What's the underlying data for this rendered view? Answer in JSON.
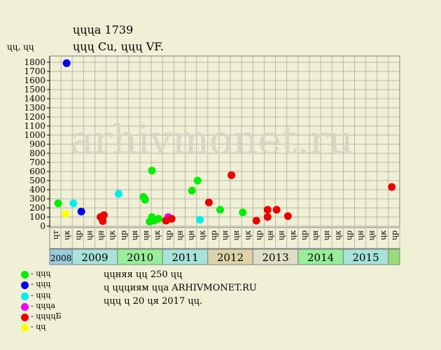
{
  "header": {
    "title": "ųųųа 1739",
    "subtitle": "ųųų Cu, ųųų VF.",
    "ylabel": "ųų, ųų"
  },
  "watermark": "arhivmonet.ru",
  "notes": [
    "ųųняя ųų 250 ųų",
    "ų ųųųиям ųųа ARHIVMONET.RU",
    "ųųų ų 20 ųя 2017 ųų."
  ],
  "legend": [
    {
      "label": "- ųųų",
      "color": "#00ee00"
    },
    {
      "label": "- ųųų",
      "color": "#0000ee"
    },
    {
      "label": "- ųųų",
      "color": "#00eeee"
    },
    {
      "label": "- ųųųа",
      "color": "#ee00ee"
    },
    {
      "label": "- ųųųųБ",
      "color": "#ee0000"
    },
    {
      "label": "- ųų",
      "color": "#ffff00"
    }
  ],
  "chart_data": {
    "type": "scatter",
    "ylim": [
      0,
      1800
    ],
    "y_ticks": [
      0,
      100,
      200,
      300,
      400,
      500,
      600,
      700,
      800,
      900,
      1000,
      1100,
      1200,
      1300,
      1400,
      1500,
      1600,
      1700,
      1800
    ],
    "x_ticks": [
      "ųт",
      "ųк",
      "ųр",
      "ųн",
      "ųн",
      "ųк",
      "ųр",
      "ųн",
      "ųн",
      "ųк",
      "ųр",
      "ųн",
      "ųн",
      "ųк",
      "ųр",
      "ųн",
      "ųн",
      "ųк",
      "ųр",
      "ųн",
      "ųн",
      "ųк",
      "ųр",
      "ųн",
      "ųн",
      "ųк",
      "ųр",
      "ųн",
      "ųн",
      "ųк",
      "ųр"
    ],
    "years": [
      {
        "label": "2008",
        "span": 2,
        "color": "#99ccdd",
        "small": true
      },
      {
        "label": "2009",
        "span": 4,
        "color": "#a8e2d8"
      },
      {
        "label": "2010",
        "span": 4,
        "color": "#99ee99"
      },
      {
        "label": "2011",
        "span": 4,
        "color": "#a8e2d8"
      },
      {
        "label": "2012",
        "span": 4,
        "color": "#dcd3a8"
      },
      {
        "label": "2013",
        "span": 4,
        "color": "#dddfc6"
      },
      {
        "label": "2014",
        "span": 4,
        "color": "#99ee99"
      },
      {
        "label": "2015",
        "span": 4,
        "color": "#a8e2d8"
      },
      {
        "label": "",
        "span": 1,
        "color": "#99dd77"
      }
    ],
    "series": [
      {
        "color": "#00ee00",
        "points": [
          [
            0.25,
            250
          ],
          [
            7.8,
            320
          ],
          [
            7.95,
            290
          ],
          [
            8.55,
            610
          ],
          [
            8.55,
            100
          ],
          [
            8.35,
            50
          ],
          [
            8.75,
            60
          ],
          [
            9.15,
            80
          ],
          [
            12.1,
            390
          ],
          [
            12.6,
            500
          ],
          [
            14.6,
            180
          ],
          [
            16.6,
            150
          ]
        ]
      },
      {
        "color": "#0000ee",
        "points": [
          [
            1.0,
            1790
          ],
          [
            2.3,
            160
          ]
        ]
      },
      {
        "color": "#00eeee",
        "points": [
          [
            1.6,
            250
          ],
          [
            5.6,
            355
          ],
          [
            12.8,
            70
          ]
        ]
      },
      {
        "color": "#ee00ee",
        "points": [
          [
            10.0,
            100
          ]
        ]
      },
      {
        "color": "#ee0000",
        "points": [
          [
            4.0,
            100
          ],
          [
            4.3,
            120
          ],
          [
            4.2,
            55
          ],
          [
            9.8,
            60
          ],
          [
            10.3,
            80
          ],
          [
            13.6,
            260
          ],
          [
            15.6,
            560
          ],
          [
            17.8,
            60
          ],
          [
            18.8,
            180
          ],
          [
            18.8,
            100
          ],
          [
            19.6,
            180
          ],
          [
            20.6,
            110
          ],
          [
            29.8,
            430
          ]
        ]
      },
      {
        "color": "#ffff00",
        "points": [
          [
            0.9,
            135
          ]
        ]
      }
    ]
  }
}
